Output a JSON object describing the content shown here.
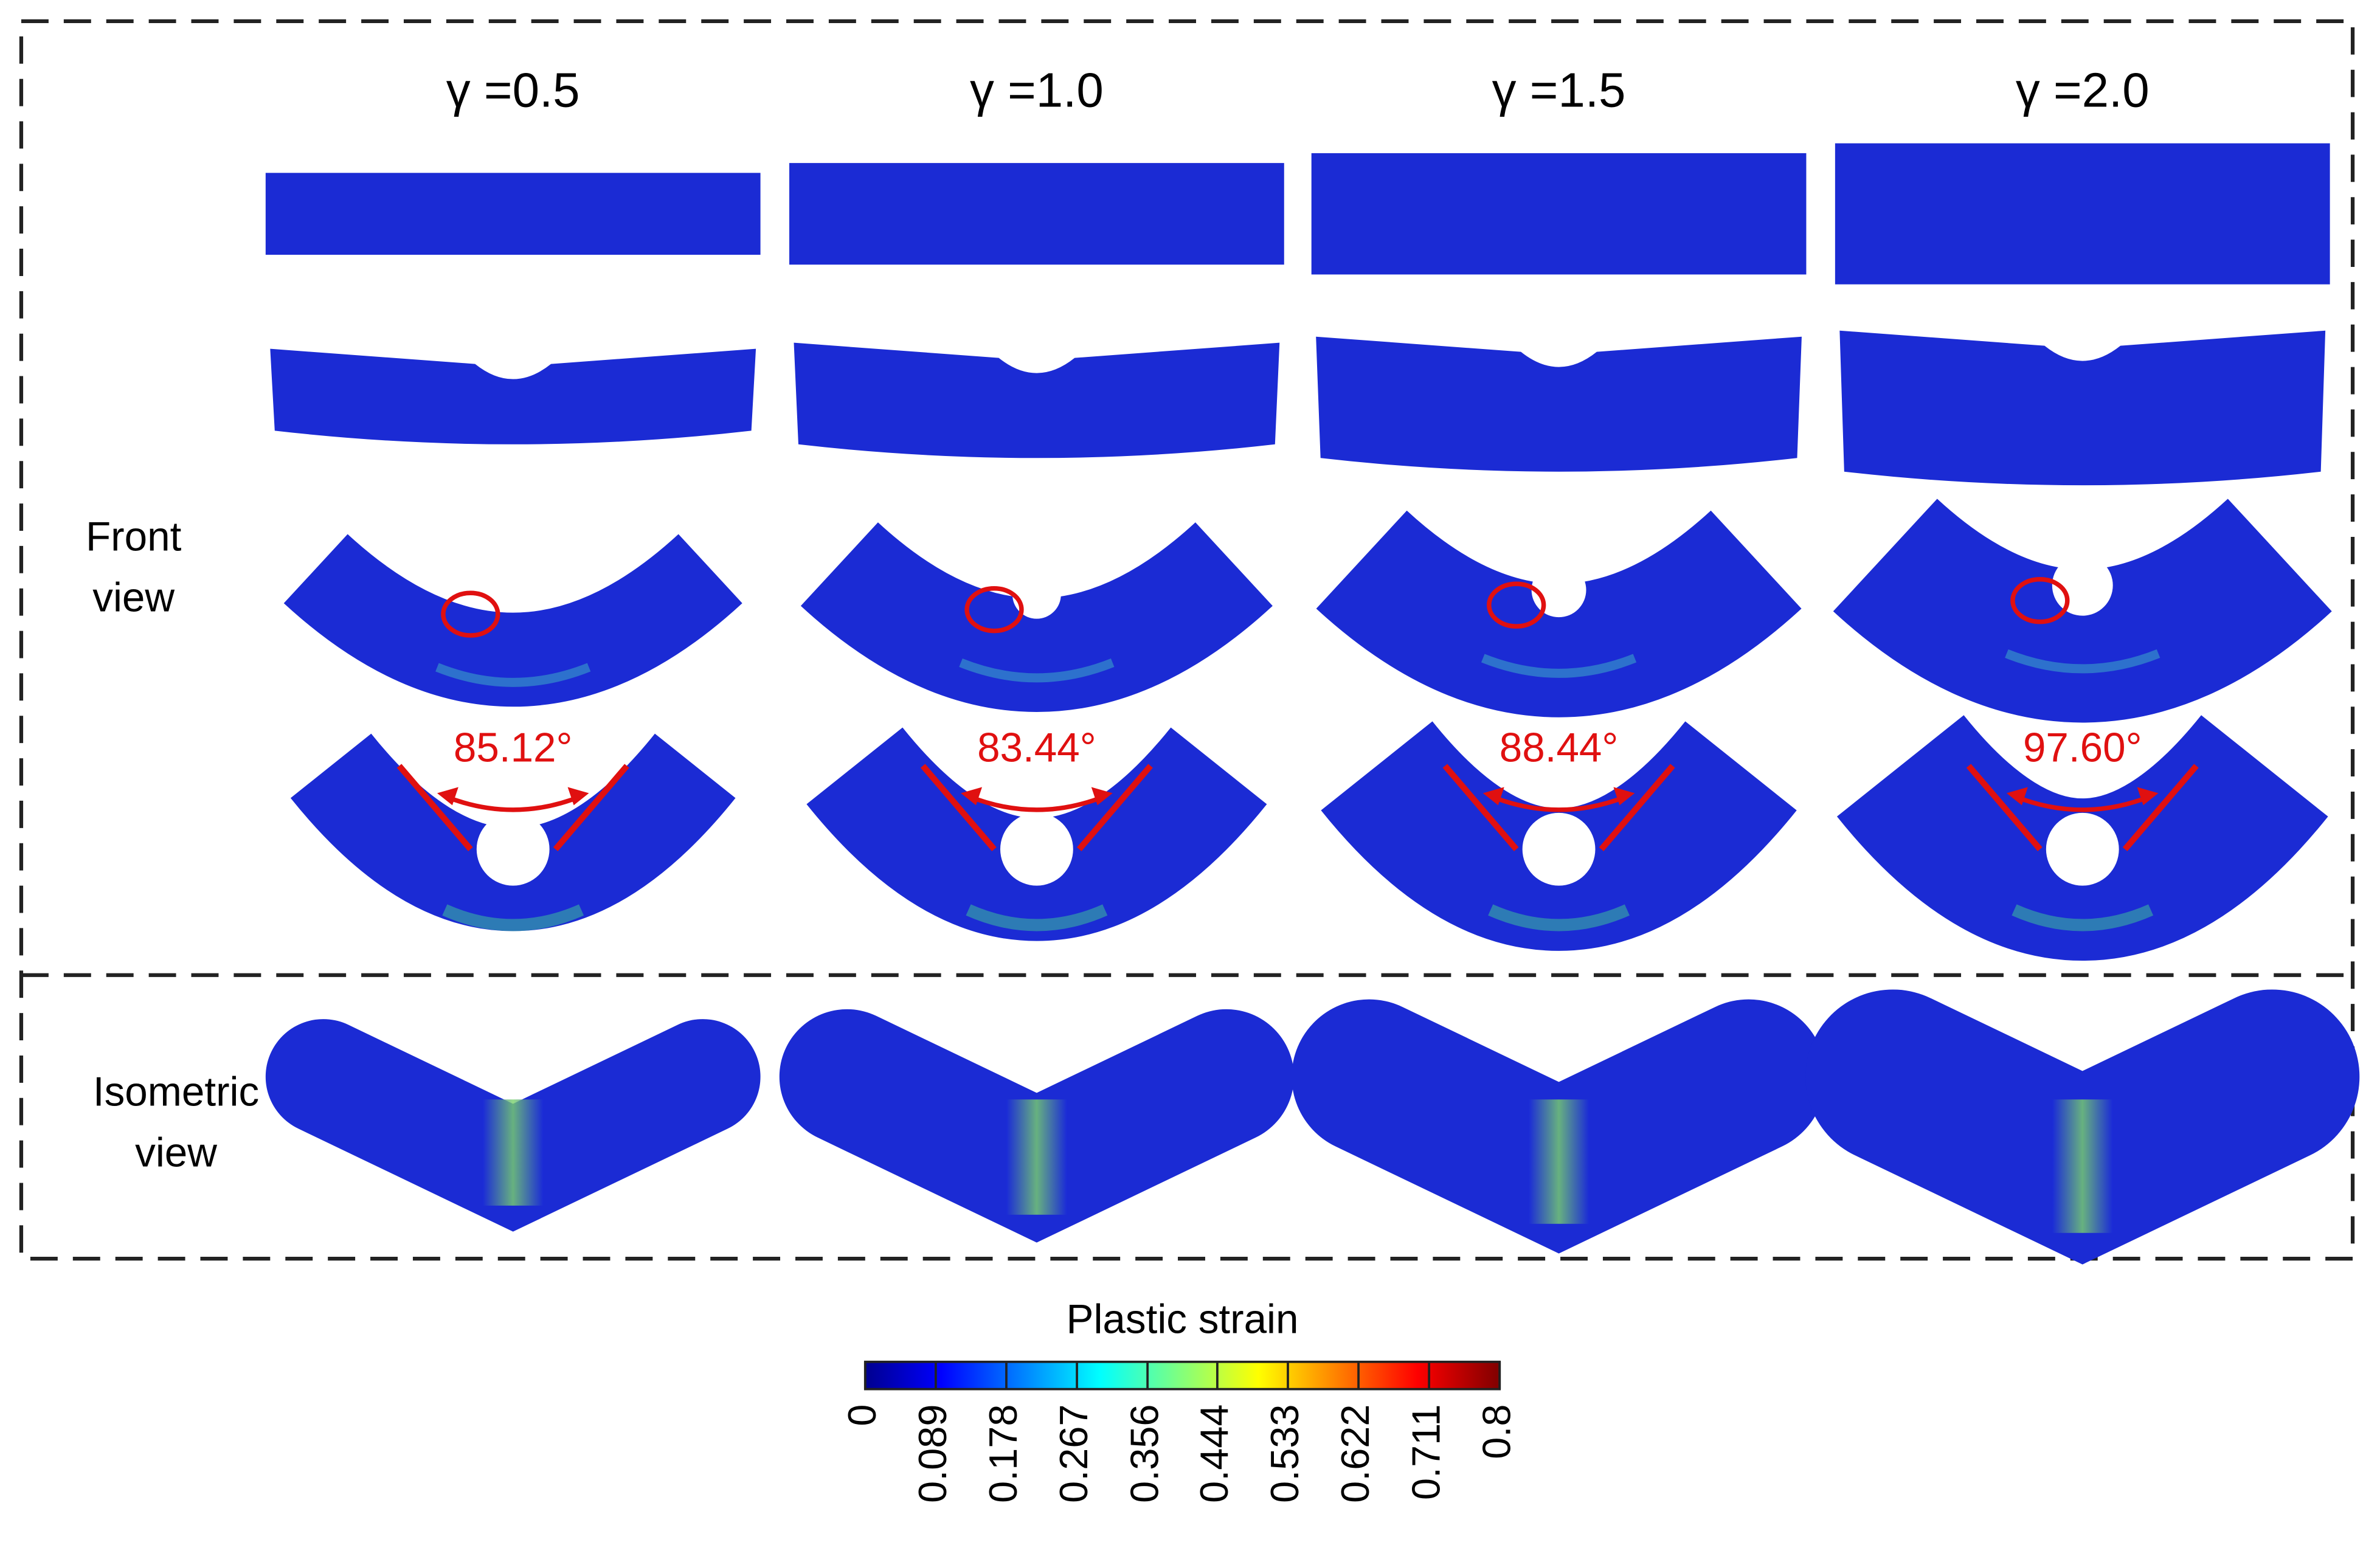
{
  "columns": [
    "γ =0.5",
    "γ =1.0",
    "γ =1.5",
    "γ =2.0"
  ],
  "rows": [
    [
      "Front",
      "view"
    ],
    [
      "Isometric",
      "view"
    ]
  ],
  "angles": [
    "85.12°",
    "83.44°",
    "88.44°",
    "97.60°"
  ],
  "colorbar": {
    "title": "Plastic strain",
    "ticks": [
      0,
      0.089,
      0.178,
      0.267,
      0.356,
      0.444,
      0.533,
      0.622,
      0.711,
      0.8
    ]
  }
}
